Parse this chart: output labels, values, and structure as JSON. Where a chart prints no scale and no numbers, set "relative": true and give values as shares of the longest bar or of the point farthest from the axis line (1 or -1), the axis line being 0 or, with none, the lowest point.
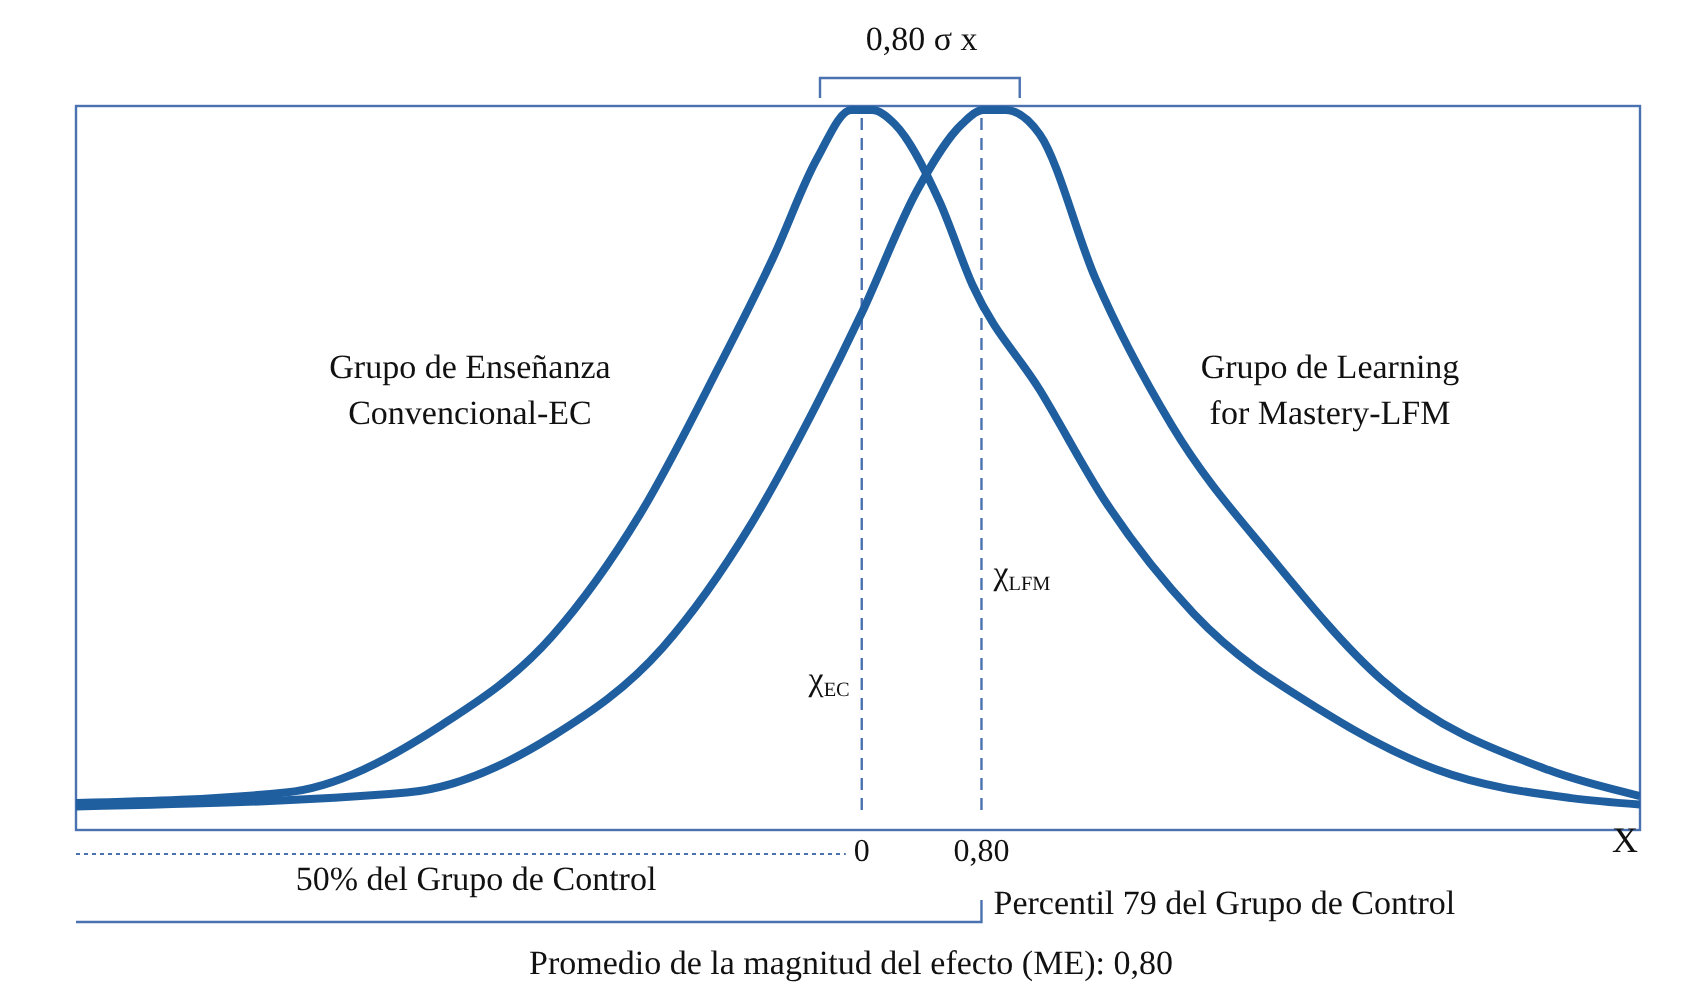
{
  "chart_data": {
    "type": "line",
    "relative": true,
    "xlabel": "X",
    "xlim": [
      -5.25,
      5.2
    ],
    "xticks": [
      {
        "value": 0,
        "label": "0"
      },
      {
        "value": 0.8,
        "label": "0,80"
      }
    ],
    "grid": false,
    "legend": false,
    "marker": "none",
    "line_style": "solid",
    "series": [
      {
        "name": "Grupo de Enseñanza Convencional-EC",
        "color": "#1f5fa0",
        "x": [
          -5.25,
          -3.85,
          -2.81,
          -2.07,
          -1.48,
          -0.96,
          -0.59,
          -0.3,
          -0.07,
          0.07,
          0.22,
          0.52,
          0.74,
          1.19,
          1.63,
          2.22,
          3.11,
          3.85,
          4.74,
          5.2
        ],
        "values": [
          0.01,
          0.025,
          0.121,
          0.248,
          0.423,
          0.631,
          0.79,
          0.93,
          1,
          1,
          0.98,
          0.869,
          0.75,
          0.6,
          0.44,
          0.28,
          0.137,
          0.057,
          0.017,
          0.008
        ]
      },
      {
        "name": "Grupo de Learning for Mastery-LFM",
        "color": "#1f5fa0",
        "x": [
          -5.25,
          -3.04,
          -2.07,
          -1.33,
          -0.74,
          -0.3,
          0,
          0.37,
          0.67,
          0.81,
          0.96,
          1.19,
          1.56,
          2.07,
          2.74,
          3.48,
          4.59,
          5.2
        ],
        "values": [
          0.005,
          0.025,
          0.105,
          0.232,
          0.408,
          0.58,
          0.71,
          0.885,
          0.98,
          1,
          1,
          0.965,
          0.76,
          0.55,
          0.36,
          0.185,
          0.057,
          0.02
        ]
      }
    ],
    "ref_lines": [
      {
        "axis": "x",
        "value": 0,
        "label": "χ$_{EC}$",
        "color": "#4a72b0",
        "line_style": "dashed"
      },
      {
        "axis": "x",
        "value": 0.8,
        "label": "χ$_{LFM}$",
        "color": "#4a72b0",
        "line_style": "dashed"
      }
    ],
    "annotations": [
      "0,80 σ x",
      "50% del Grupo de Control",
      "Percentil 79 del Grupo de Control",
      "Promedio de la magnitud del efecto (ME): 0,80"
    ]
  }
}
